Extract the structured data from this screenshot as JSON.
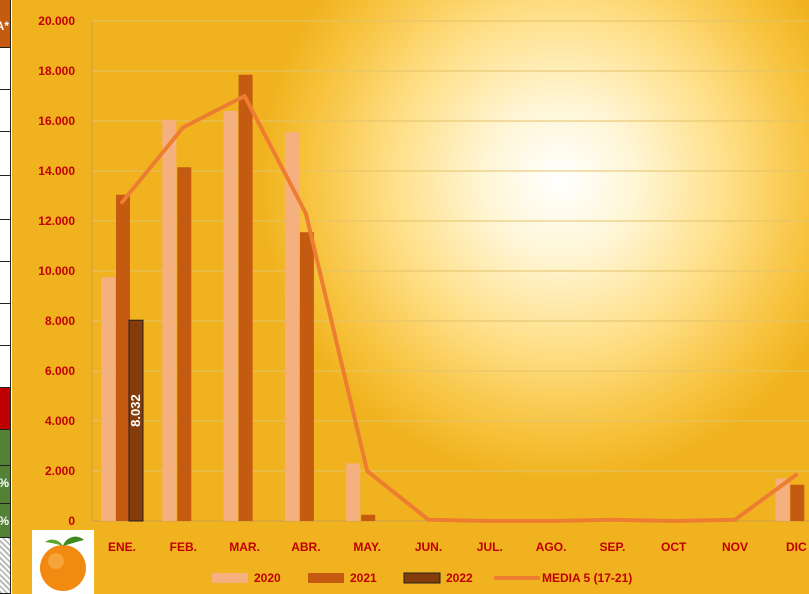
{
  "side_panel": {
    "top_label": "A*",
    "pct_label_1": "%",
    "pct_label_2": "%"
  },
  "colors": {
    "s2020": "#f5b07f",
    "s2021": "#c55a11",
    "s2022": "#843c0c",
    "media": "#ed7d31",
    "text": "#c00000"
  },
  "chart_data": {
    "type": "bar",
    "categories": [
      "ENE.",
      "FEB.",
      "MAR.",
      "ABR.",
      "MAY.",
      "JUN.",
      "JUL.",
      "AGO.",
      "SEP.",
      "OCT",
      "NOV",
      "DIC"
    ],
    "ylim": [
      0,
      20000
    ],
    "yticks": [
      "0",
      "2.000",
      "4.000",
      "6.000",
      "8.000",
      "10.000",
      "12.000",
      "14.000",
      "16.000",
      "18.000",
      "20.000"
    ],
    "series": [
      {
        "name": "2020",
        "kind": "bar",
        "values": [
          9750,
          16050,
          16400,
          15550,
          2300,
          0,
          0,
          0,
          0,
          0,
          0,
          1700
        ]
      },
      {
        "name": "2021",
        "kind": "bar",
        "values": [
          13050,
          14150,
          17850,
          11550,
          250,
          0,
          0,
          0,
          0,
          0,
          0,
          1450
        ]
      },
      {
        "name": "2022",
        "kind": "bar",
        "values": [
          8032,
          null,
          null,
          null,
          null,
          null,
          null,
          null,
          null,
          null,
          null,
          null
        ],
        "data_labels": [
          "8.032"
        ]
      },
      {
        "name": "MEDIA 5 (17-21)",
        "kind": "line",
        "values": [
          12750,
          15750,
          17000,
          12300,
          2000,
          50,
          0,
          0,
          50,
          0,
          50,
          1850
        ]
      }
    ],
    "legend_position": "bottom",
    "grid": true
  }
}
